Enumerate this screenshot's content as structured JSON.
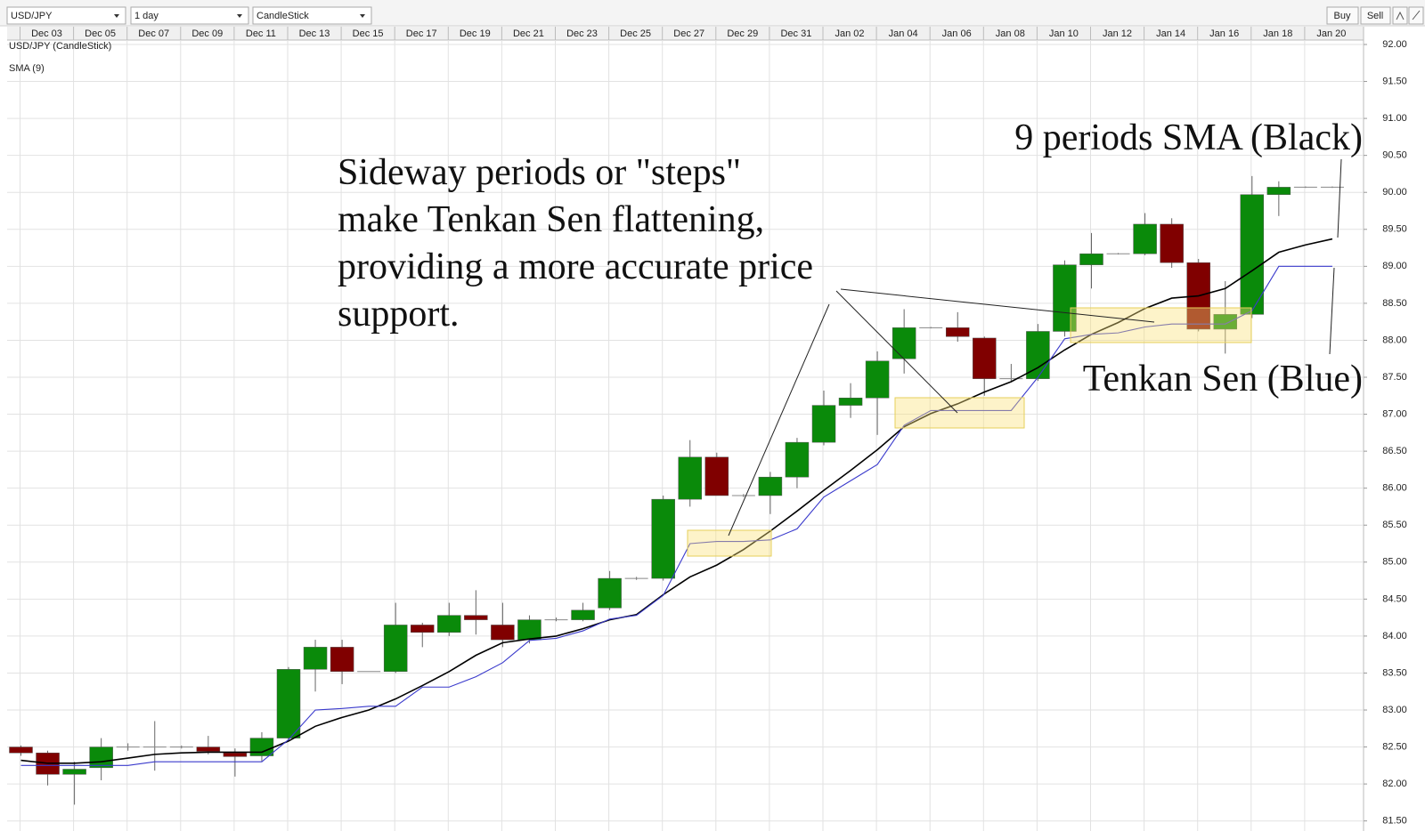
{
  "toolbar": {
    "symbol": "USD/JPY",
    "interval": "1 day",
    "chart_type": "CandleStick",
    "buttons": [
      "Buy",
      "Sell"
    ]
  },
  "chart_data": {
    "type": "candlestick",
    "name": "USD/JPY (CandleStick)",
    "name_color": "#d42020",
    "up_color": "#0a8a0a",
    "down_color": "#800000",
    "grid": true,
    "categories": [
      "Dec 03",
      null,
      "Dec 05",
      null,
      "Dec 07",
      null,
      "Dec 09",
      null,
      "Dec 11",
      null,
      "Dec 13",
      null,
      "Dec 15",
      null,
      "Dec 17",
      null,
      "Dec 19",
      null,
      "Dec 21",
      null,
      "Dec 23",
      null,
      "Dec 25",
      null,
      "Dec 27",
      null,
      "Dec 29",
      null,
      "Dec 31",
      null,
      "Jan 02",
      null,
      "Jan 04",
      null,
      "Jan 06",
      null,
      "Jan 08",
      null,
      "Jan 10",
      null,
      "Jan 12",
      null,
      "Jan 14",
      null,
      "Jan 16",
      null,
      "Jan 18",
      null,
      "Jan 20",
      null
    ],
    "open": [
      82.5,
      82.42,
      82.13,
      82.22,
      82.5,
      82.5,
      82.5,
      82.5,
      82.42,
      82.38,
      82.62,
      83.55,
      83.85,
      83.52,
      83.52,
      84.15,
      84.05,
      84.28,
      84.15,
      83.95,
      84.22,
      84.22,
      84.38,
      84.78,
      84.78,
      85.85,
      86.42,
      85.9,
      85.9,
      86.15,
      86.62,
      87.12,
      87.22,
      87.75,
      88.17,
      88.17,
      88.03,
      87.48,
      87.48,
      88.12,
      89.02,
      89.17,
      89.17,
      89.57,
      89.05,
      88.15,
      88.35,
      89.97,
      90.07,
      90.07
    ],
    "high": [
      82.52,
      82.45,
      82.3,
      82.62,
      82.55,
      82.85,
      82.52,
      82.65,
      82.48,
      82.7,
      83.58,
      83.95,
      83.95,
      83.52,
      84.45,
      84.18,
      84.45,
      84.62,
      84.45,
      84.28,
      84.25,
      84.45,
      84.88,
      84.8,
      85.9,
      86.65,
      86.48,
      85.92,
      86.22,
      86.68,
      87.32,
      87.42,
      87.85,
      88.42,
      88.18,
      88.38,
      88.05,
      87.68,
      88.22,
      89.08,
      89.45,
      89.18,
      89.72,
      89.65,
      89.1,
      88.8,
      90.22,
      90.15,
      90.08,
      90.08
    ],
    "low": [
      82.38,
      81.98,
      81.72,
      82.05,
      82.45,
      82.18,
      82.48,
      82.4,
      82.1,
      82.3,
      82.58,
      83.25,
      83.35,
      83.52,
      83.5,
      83.85,
      84.0,
      84.02,
      83.85,
      83.9,
      84.2,
      84.2,
      84.35,
      84.76,
      84.75,
      85.75,
      85.9,
      85.88,
      85.65,
      86.0,
      86.58,
      86.95,
      86.72,
      87.55,
      88.16,
      87.98,
      87.25,
      87.45,
      87.45,
      88.05,
      88.7,
      89.16,
      89.15,
      88.98,
      88.12,
      87.82,
      88.3,
      89.68,
      90.06,
      90.06
    ],
    "close": [
      82.42,
      82.13,
      82.2,
      82.5,
      82.5,
      82.5,
      82.5,
      82.44,
      82.37,
      82.62,
      83.55,
      83.85,
      83.52,
      83.52,
      84.15,
      84.05,
      84.28,
      84.22,
      83.95,
      84.22,
      84.22,
      84.35,
      84.78,
      84.78,
      85.85,
      86.42,
      85.9,
      85.9,
      86.15,
      86.62,
      87.12,
      87.22,
      87.72,
      88.17,
      88.17,
      88.05,
      87.48,
      87.48,
      88.12,
      89.02,
      89.17,
      89.17,
      89.57,
      89.05,
      88.15,
      88.35,
      89.97,
      90.07,
      90.07,
      90.07
    ],
    "overlays": [
      {
        "name": "SMA (9)",
        "color": "#000000",
        "values": [
          82.32,
          82.28,
          82.28,
          82.3,
          82.35,
          82.4,
          82.42,
          82.43,
          82.43,
          82.43,
          82.58,
          82.78,
          82.9,
          83.0,
          83.15,
          83.33,
          83.52,
          83.74,
          83.91,
          83.96,
          84.0,
          84.1,
          84.22,
          84.29,
          84.56,
          84.8,
          84.96,
          85.17,
          85.42,
          85.69,
          85.97,
          86.24,
          86.52,
          86.83,
          87.01,
          87.14,
          87.3,
          87.44,
          87.63,
          87.87,
          88.08,
          88.24,
          88.43,
          88.57,
          88.6,
          88.7,
          88.94,
          89.19,
          89.29,
          89.37
        ]
      },
      {
        "color": "#3a3acc",
        "values": [
          82.25,
          82.25,
          82.25,
          82.25,
          82.25,
          82.3,
          82.3,
          82.3,
          82.3,
          82.3,
          82.6,
          83.0,
          83.02,
          83.05,
          83.05,
          83.31,
          83.31,
          83.45,
          83.64,
          83.94,
          83.97,
          84.07,
          84.23,
          84.28,
          84.55,
          85.25,
          85.28,
          85.28,
          85.3,
          85.45,
          85.88,
          86.1,
          86.32,
          86.85,
          87.05,
          87.05,
          87.05,
          87.05,
          87.5,
          88.02,
          88.08,
          88.1,
          88.18,
          88.22,
          88.22,
          88.22,
          88.4,
          89.0,
          89.0,
          89.0
        ]
      }
    ],
    "ylim": [
      81.4,
      92.06
    ],
    "yticks": [
      {
        "value": 81.5,
        "label": "81.50"
      },
      {
        "value": 82,
        "label": "82.00"
      },
      {
        "value": 82.5,
        "label": "82.50"
      },
      {
        "value": 83,
        "label": "83.00"
      },
      {
        "value": 83.5,
        "label": "83.50"
      },
      {
        "value": 84,
        "label": "84.00"
      },
      {
        "value": 84.5,
        "label": "84.50"
      },
      {
        "value": 85,
        "label": "85.00"
      },
      {
        "value": 85.5,
        "label": "85.50"
      },
      {
        "value": 86,
        "label": "86.00"
      },
      {
        "value": 86.5,
        "label": "86.50"
      },
      {
        "value": 87,
        "label": "87.00"
      },
      {
        "value": 87.5,
        "label": "87.50"
      },
      {
        "value": 88,
        "label": "88.00"
      },
      {
        "value": 88.5,
        "label": "88.50"
      },
      {
        "value": 89,
        "label": "89.00"
      },
      {
        "value": 89.5,
        "label": "89.50"
      },
      {
        "value": 90,
        "label": "90.00"
      },
      {
        "value": 90.5,
        "label": "90.50"
      },
      {
        "value": 91,
        "label": "91.00"
      },
      {
        "value": 91.5,
        "label": "91.50"
      },
      {
        "value": 92,
        "label": "92.00"
      }
    ],
    "annotations": [
      {
        "lines": [
          "Sideway periods or \"steps\"",
          "make Tenkan Sen flattening,",
          "providing a more accurate price",
          "support."
        ]
      },
      {
        "text": "9 periods SMA (Black)"
      },
      {
        "text": "Tenkan Sen (Blue)"
      }
    ]
  }
}
